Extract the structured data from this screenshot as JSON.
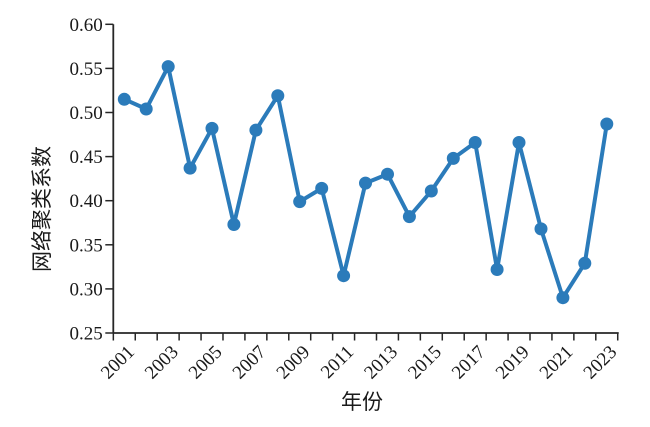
{
  "figure": {
    "background": "#ffffff"
  },
  "chart_data": {
    "type": "line",
    "title": "",
    "xlabel": "年份",
    "ylabel": "网络聚类系数",
    "x": [
      2001,
      2002,
      2003,
      2004,
      2005,
      2006,
      2007,
      2008,
      2009,
      2010,
      2011,
      2012,
      2013,
      2014,
      2015,
      2016,
      2017,
      2018,
      2019,
      2020,
      2021,
      2022,
      2023
    ],
    "values": [
      0.515,
      0.504,
      0.552,
      0.437,
      0.482,
      0.373,
      0.48,
      0.519,
      0.399,
      0.414,
      0.315,
      0.42,
      0.43,
      0.382,
      0.411,
      0.448,
      0.466,
      0.322,
      0.466,
      0.368,
      0.29,
      0.329,
      0.487
    ],
    "xlim": [
      2000.5,
      2023.5
    ],
    "ylim": [
      0.25,
      0.6
    ],
    "ytick_values": [
      0.25,
      0.3,
      0.35,
      0.4,
      0.45,
      0.5,
      0.55,
      0.6
    ],
    "ytick_labels": [
      "0.25",
      "0.30",
      "0.35",
      "0.40",
      "0.45",
      "0.50",
      "0.55",
      "0.60"
    ],
    "xtick_labeled_years": [
      2001,
      2003,
      2005,
      2007,
      2009,
      2011,
      2013,
      2015,
      2017,
      2019,
      2021,
      2023
    ],
    "xtick_label_rotation_deg": 45,
    "x_minor_ticks_every_year": true,
    "grid": false,
    "legend": "none",
    "line_color": "#2B7BBA",
    "marker": "filled-circle",
    "axis_color": "#262626",
    "text_color": "#1a1a1a"
  }
}
